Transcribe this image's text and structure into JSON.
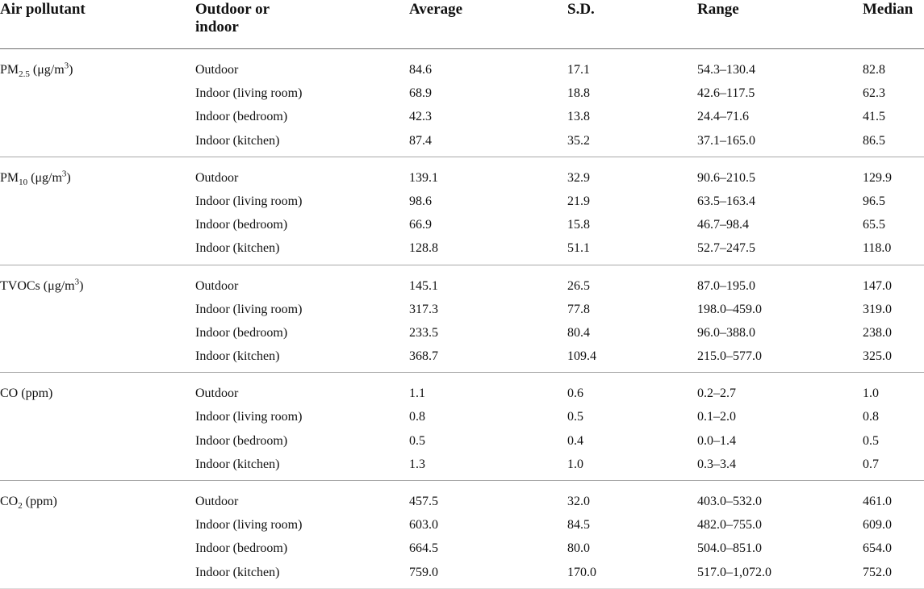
{
  "headers": {
    "pollutant": "Air pollutant",
    "location_line1": "Outdoor or",
    "location_line2": "indoor",
    "average": "Average",
    "sd": "S.D.",
    "range": "Range",
    "median": "Median"
  },
  "groups": [
    {
      "pollutant": {
        "base": "PM",
        "sub": "2.5",
        "unit": " (μg/m",
        "sup": "3",
        "close": ")"
      },
      "rows": [
        {
          "location": "Outdoor",
          "average": "84.6",
          "sd": "17.1",
          "range": "54.3–130.4",
          "median": "82.8"
        },
        {
          "location": "Indoor (living room)",
          "average": "68.9",
          "sd": "18.8",
          "range": "42.6–117.5",
          "median": "62.3"
        },
        {
          "location": "Indoor (bedroom)",
          "average": "42.3",
          "sd": "13.8",
          "range": "24.4–71.6",
          "median": "41.5"
        },
        {
          "location": "Indoor (kitchen)",
          "average": "87.4",
          "sd": "35.2",
          "range": "37.1–165.0",
          "median": "86.5"
        }
      ]
    },
    {
      "pollutant": {
        "base": "PM",
        "sub": "10",
        "unit": " (μg/m",
        "sup": "3",
        "close": ")"
      },
      "rows": [
        {
          "location": "Outdoor",
          "average": "139.1",
          "sd": "32.9",
          "range": "90.6–210.5",
          "median": "129.9"
        },
        {
          "location": "Indoor (living room)",
          "average": "98.6",
          "sd": "21.9",
          "range": "63.5–163.4",
          "median": "96.5"
        },
        {
          "location": "Indoor (bedroom)",
          "average": "66.9",
          "sd": "15.8",
          "range": "46.7–98.4",
          "median": "65.5"
        },
        {
          "location": "Indoor (kitchen)",
          "average": "128.8",
          "sd": "51.1",
          "range": "52.7–247.5",
          "median": "118.0"
        }
      ]
    },
    {
      "pollutant": {
        "base": "TVOCs",
        "sub": "",
        "unit": " (μg/m",
        "sup": "3",
        "close": ")"
      },
      "rows": [
        {
          "location": "Outdoor",
          "average": "145.1",
          "sd": "26.5",
          "range": "87.0–195.0",
          "median": "147.0"
        },
        {
          "location": "Indoor (living room)",
          "average": "317.3",
          "sd": "77.8",
          "range": "198.0–459.0",
          "median": "319.0"
        },
        {
          "location": "Indoor (bedroom)",
          "average": "233.5",
          "sd": "80.4",
          "range": "96.0–388.0",
          "median": "238.0"
        },
        {
          "location": "Indoor (kitchen)",
          "average": "368.7",
          "sd": "109.4",
          "range": "215.0–577.0",
          "median": "325.0"
        }
      ]
    },
    {
      "pollutant": {
        "base": "CO",
        "sub": "",
        "unit": " (ppm",
        "sup": "",
        "close": ")"
      },
      "rows": [
        {
          "location": "Outdoor",
          "average": "1.1",
          "sd": "0.6",
          "range": "0.2–2.7",
          "median": "1.0"
        },
        {
          "location": "Indoor (living room)",
          "average": "0.8",
          "sd": "0.5",
          "range": "0.1–2.0",
          "median": "0.8"
        },
        {
          "location": "Indoor (bedroom)",
          "average": "0.5",
          "sd": "0.4",
          "range": "0.0–1.4",
          "median": "0.5"
        },
        {
          "location": "Indoor (kitchen)",
          "average": "1.3",
          "sd": "1.0",
          "range": "0.3–3.4",
          "median": "0.7"
        }
      ]
    },
    {
      "pollutant": {
        "base": "CO",
        "sub": "2",
        "unit": " (ppm",
        "sup": "",
        "close": ")"
      },
      "rows": [
        {
          "location": "Outdoor",
          "average": "457.5",
          "sd": "32.0",
          "range": "403.0–532.0",
          "median": "461.0"
        },
        {
          "location": "Indoor (living room)",
          "average": "603.0",
          "sd": "84.5",
          "range": "482.0–755.0",
          "median": "609.0"
        },
        {
          "location": "Indoor (bedroom)",
          "average": "664.5",
          "sd": "80.0",
          "range": "504.0–851.0",
          "median": "654.0"
        },
        {
          "location": "Indoor (kitchen)",
          "average": "759.0",
          "sd": "170.0",
          "range": "517.0–1,072.0",
          "median": "752.0"
        }
      ]
    }
  ]
}
